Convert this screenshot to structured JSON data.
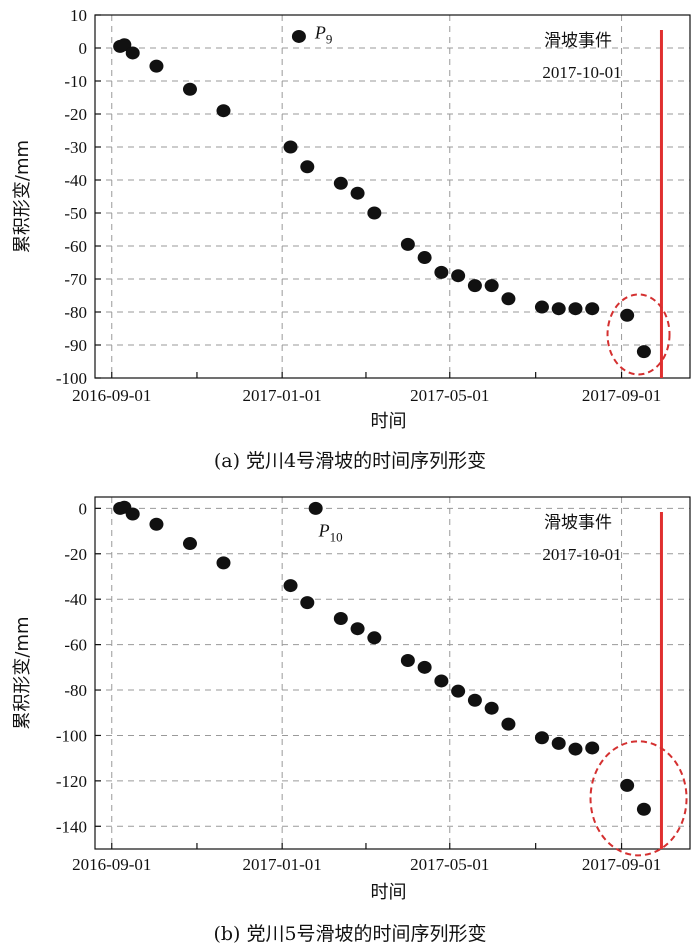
{
  "chart_data": [
    {
      "type": "scatter",
      "caption": "(a) 党川4号滑坡的时间序列形变",
      "xlabel": "时间",
      "ylabel": "累积形变/mm",
      "x_ticks": [
        "2016-09-01",
        "2017-01-01",
        "2017-05-01",
        "2017-09-01"
      ],
      "x_range": [
        "2016-08-20",
        "2017-10-20"
      ],
      "ylim": [
        -100,
        10
      ],
      "y_ticks": [
        10,
        0,
        -10,
        -20,
        -30,
        -40,
        -50,
        -60,
        -70,
        -80,
        -90,
        -100
      ],
      "grid": true,
      "event": {
        "date": "2017-10-01",
        "label": "滑坡事件",
        "date_label": "2017-10-01",
        "color": "#e03030"
      },
      "point_label": {
        "name": "P",
        "sub": "9"
      },
      "highlight_circle_color": "#d43030",
      "points": [
        {
          "x": "2016-09-07",
          "y": 0.5
        },
        {
          "x": "2016-09-10",
          "y": 1
        },
        {
          "x": "2016-09-16",
          "y": -1.5
        },
        {
          "x": "2016-10-03",
          "y": -5.5
        },
        {
          "x": "2016-10-27",
          "y": -12.5
        },
        {
          "x": "2016-11-20",
          "y": -19
        },
        {
          "x": "2017-01-07",
          "y": -30
        },
        {
          "x": "2017-01-19",
          "y": -36
        },
        {
          "x": "2017-02-12",
          "y": -41
        },
        {
          "x": "2017-02-24",
          "y": -44
        },
        {
          "x": "2017-03-08",
          "y": -50
        },
        {
          "x": "2017-04-01",
          "y": -59.5
        },
        {
          "x": "2017-04-13",
          "y": -63.5
        },
        {
          "x": "2017-04-25",
          "y": -68
        },
        {
          "x": "2017-05-07",
          "y": -69
        },
        {
          "x": "2017-05-19",
          "y": -72
        },
        {
          "x": "2017-05-31",
          "y": -72
        },
        {
          "x": "2017-06-12",
          "y": -76
        },
        {
          "x": "2017-07-06",
          "y": -78.5
        },
        {
          "x": "2017-07-18",
          "y": -79
        },
        {
          "x": "2017-07-30",
          "y": -79
        },
        {
          "x": "2017-08-11",
          "y": -79
        },
        {
          "x": "2017-09-05",
          "y": -81
        },
        {
          "x": "2017-09-17",
          "y": -92
        },
        {
          "x": "2017-01-13",
          "y": 3.5
        }
      ]
    },
    {
      "type": "scatter",
      "caption": "(b) 党川5号滑坡的时间序列形变",
      "xlabel": "时间",
      "ylabel": "累积形变/mm",
      "x_ticks": [
        "2016-09-01",
        "2017-01-01",
        "2017-05-01",
        "2017-09-01"
      ],
      "x_range": [
        "2016-08-20",
        "2017-10-20"
      ],
      "ylim": [
        -150,
        5
      ],
      "y_ticks": [
        0,
        -20,
        -40,
        -60,
        -80,
        -100,
        -120,
        -140
      ],
      "grid": true,
      "event": {
        "date": "2017-10-01",
        "label": "滑坡事件",
        "date_label": "2017-10-01",
        "color": "#e03030"
      },
      "point_label": {
        "name": "P",
        "sub": "10"
      },
      "highlight_circle_color": "#d43030",
      "points": [
        {
          "x": "2016-09-07",
          "y": 0
        },
        {
          "x": "2016-09-10",
          "y": 0.5
        },
        {
          "x": "2016-09-16",
          "y": -2.5
        },
        {
          "x": "2016-10-03",
          "y": -7
        },
        {
          "x": "2016-10-27",
          "y": -15.5
        },
        {
          "x": "2016-11-20",
          "y": -24
        },
        {
          "x": "2017-01-07",
          "y": -34
        },
        {
          "x": "2017-01-19",
          "y": -41.5
        },
        {
          "x": "2017-02-12",
          "y": -48.5
        },
        {
          "x": "2017-02-24",
          "y": -53
        },
        {
          "x": "2017-03-08",
          "y": -57
        },
        {
          "x": "2017-04-01",
          "y": -67
        },
        {
          "x": "2017-04-13",
          "y": -70
        },
        {
          "x": "2017-04-25",
          "y": -76
        },
        {
          "x": "2017-05-07",
          "y": -80.5
        },
        {
          "x": "2017-05-19",
          "y": -84.5
        },
        {
          "x": "2017-05-31",
          "y": -88
        },
        {
          "x": "2017-06-12",
          "y": -95
        },
        {
          "x": "2017-07-06",
          "y": -101
        },
        {
          "x": "2017-07-18",
          "y": -103.5
        },
        {
          "x": "2017-07-30",
          "y": -106
        },
        {
          "x": "2017-08-11",
          "y": -105.5
        },
        {
          "x": "2017-09-05",
          "y": -122
        },
        {
          "x": "2017-09-17",
          "y": -132.5
        },
        {
          "x": "2017-01-25",
          "y": 0
        }
      ]
    }
  ]
}
